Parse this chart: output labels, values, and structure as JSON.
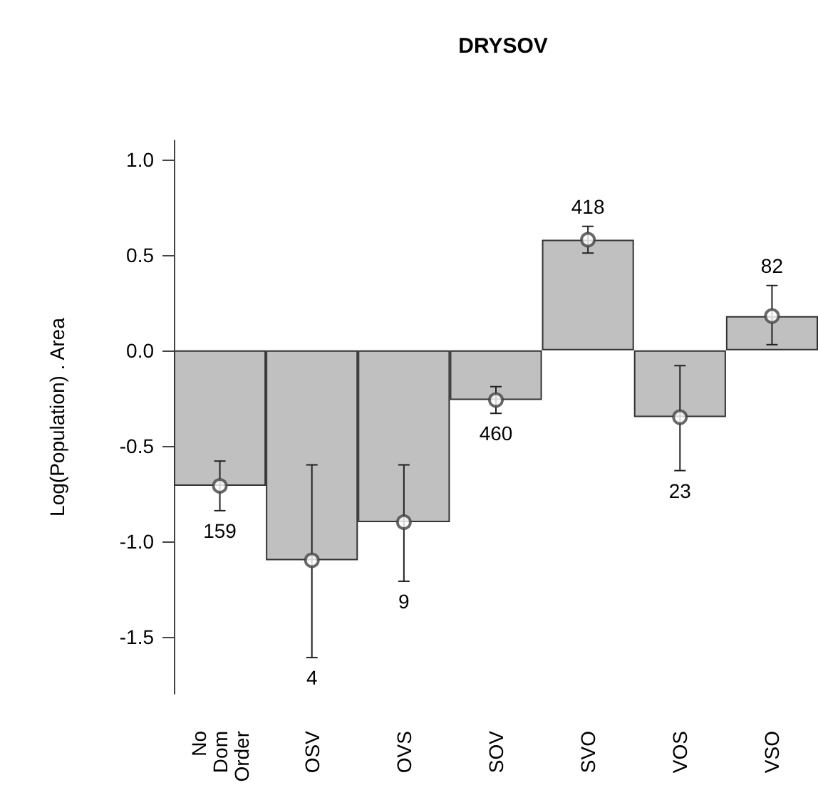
{
  "chart_data": {
    "type": "bar",
    "title": "DRYSOV",
    "ylabel": "Log(Population) . Area",
    "categories": [
      "No Dom Order",
      "OSV",
      "OVS",
      "SOV",
      "SVO",
      "VOS",
      "VSO"
    ],
    "series": [
      {
        "color": "#c0c0c0",
        "values": [
          -0.71,
          -1.1,
          -0.9,
          -0.26,
          0.58,
          -0.35,
          0.18
        ],
        "errors": [
          [
            -0.84,
            -0.58
          ],
          [
            -1.61,
            -0.6
          ],
          [
            -1.21,
            -0.6
          ],
          [
            -0.33,
            -0.19
          ],
          [
            0.51,
            0.65
          ],
          [
            -0.63,
            -0.08
          ],
          [
            0.03,
            0.34
          ]
        ]
      },
      {
        "type": "scatter",
        "color": "#444444",
        "x": [
          "No Dom Order",
          "OSV",
          "OVS",
          "SOV",
          "SVO",
          "VOS",
          "VSO"
        ],
        "values": [
          -0.71,
          -1.1,
          -0.9,
          -0.26,
          0.58,
          -0.35,
          0.18
        ],
        "marker": "circle"
      }
    ],
    "annotations": [
      {
        "text": "159",
        "x": "No Dom Order",
        "y": -0.84
      },
      {
        "text": "4",
        "x": "OSV",
        "y": -1.61
      },
      {
        "text": "9",
        "x": "OVS",
        "y": -1.21
      },
      {
        "text": "460",
        "x": "SOV",
        "y": -0.33
      },
      {
        "text": "418",
        "x": "SVO",
        "y": 0.65
      },
      {
        "text": "23",
        "x": "VOS",
        "y": -0.63
      },
      {
        "text": "82",
        "x": "VSO",
        "y": 0.34
      }
    ],
    "ylim": [
      -1.8,
      1.1
    ],
    "yticks": [
      -1.5,
      {
        "value": -1,
        "label": "-1.0"
      },
      -0.5,
      {
        "value": 0,
        "label": "0.0"
      },
      0.5,
      {
        "value": 1,
        "label": "1.0"
      }
    ],
    "grid": false
  }
}
